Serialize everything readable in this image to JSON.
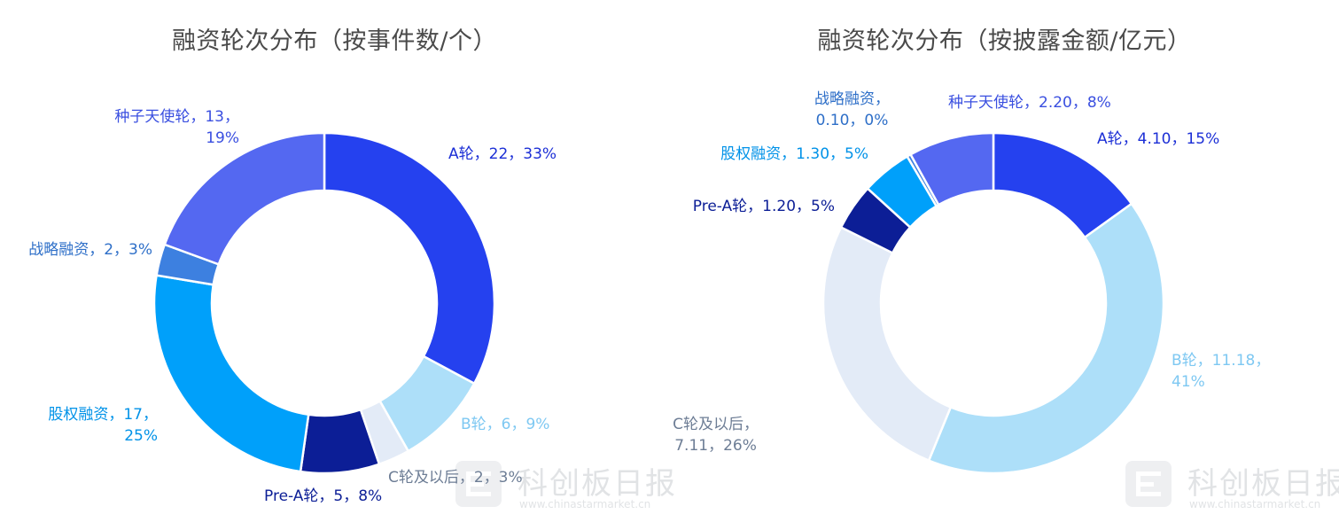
{
  "chart_data": [
    {
      "type": "pie",
      "title": "融资轮次分布（按事件数/个）",
      "slices": [
        {
          "name": "A轮",
          "value": 22,
          "percent": "33%",
          "label": [
            "A轮，22，33%"
          ],
          "color": "#2541ef"
        },
        {
          "name": "B轮",
          "value": 6,
          "percent": "9%",
          "label": [
            "B轮，6，9%"
          ],
          "color": "#addff9"
        },
        {
          "name": "C轮及以后",
          "value": 2,
          "percent": "3%",
          "label": [
            "C轮及以后，2，3%"
          ],
          "color": "#e3ebf7"
        },
        {
          "name": "Pre-A轮",
          "value": 5,
          "percent": "8%",
          "label": [
            "Pre-A轮，5，8%"
          ],
          "color": "#0c1e96"
        },
        {
          "name": "股权融资",
          "value": 17,
          "percent": "25%",
          "label": [
            "股权融资，17，",
            "25%"
          ],
          "color": "#00a0fa"
        },
        {
          "name": "战略融资",
          "value": 2,
          "percent": "3%",
          "label": [
            "战略融资，2，3%"
          ],
          "color": "#3d80e0"
        },
        {
          "name": "种子天使轮",
          "value": 13,
          "percent": "19%",
          "label": [
            "种子天使轮，13，",
            "19%"
          ],
          "color": "#5468f1"
        }
      ]
    },
    {
      "type": "pie",
      "title": "融资轮次分布（按披露金额/亿元）",
      "slices": [
        {
          "name": "A轮",
          "value": 4.1,
          "percent": "15%",
          "label": [
            "A轮，4.10，15%"
          ],
          "color": "#2541ef"
        },
        {
          "name": "B轮",
          "value": 11.18,
          "percent": "41%",
          "label": [
            "B轮，11.18，",
            "41%"
          ],
          "color": "#addff9"
        },
        {
          "name": "C轮及以后",
          "value": 7.11,
          "percent": "26%",
          "label": [
            "C轮及以后，",
            "7.11，26%"
          ],
          "color": "#e3ebf7"
        },
        {
          "name": "Pre-A轮",
          "value": 1.2,
          "percent": "5%",
          "label": [
            "Pre-A轮，1.20，5%"
          ],
          "color": "#0c1e96"
        },
        {
          "name": "股权融资",
          "value": 1.3,
          "percent": "5%",
          "label": [
            "股权融资，1.30，5%"
          ],
          "color": "#00a0fa"
        },
        {
          "name": "战略融资",
          "value": 0.1,
          "percent": "0%",
          "label": [
            "战略融资，",
            "0.10，0%"
          ],
          "color": "#3d80e0"
        },
        {
          "name": "种子天使轮",
          "value": 2.2,
          "percent": "8%",
          "label": [
            "种子天使轮，2.20，8%"
          ],
          "color": "#5468f1"
        }
      ]
    }
  ],
  "watermark": {
    "name": "科创板日报",
    "url": "www.chinastarmarket.cn"
  },
  "label_colors": {
    "A轮": "#1c2fd6",
    "B轮": "#7ec8f2",
    "C轮及以后": "#6d7d95",
    "Pre-A轮": "#0c1e96",
    "股权融资": "#0092e8",
    "战略融资": "#2e6fc8",
    "种子天使轮": "#3a4fe0"
  }
}
